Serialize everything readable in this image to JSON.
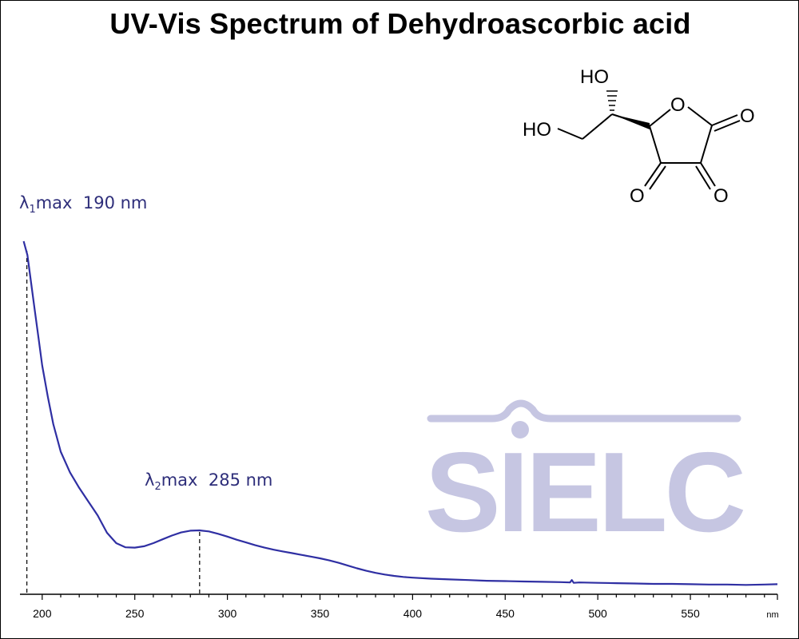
{
  "title": "UV-Vis Spectrum of Dehydroascorbic acid",
  "watermark": "SIELC",
  "colors": {
    "spectrum": "#2f2fa3",
    "label": "#2e2e7a",
    "watermark": "#c6c6e2"
  },
  "chart_data": {
    "type": "line",
    "title": "UV-Vis Spectrum of Dehydroascorbic acid",
    "xlabel": "nm",
    "ylabel": "",
    "xlim": [
      188,
      597
    ],
    "x_ticks": [
      200,
      250,
      300,
      350,
      400,
      450,
      500,
      550
    ],
    "grid": false,
    "peaks": [
      {
        "symbol": "λ",
        "index": "1",
        "text": "max",
        "value": "190 nm",
        "x": 190
      },
      {
        "symbol": "λ",
        "index": "2",
        "text": "max",
        "value": "285 nm",
        "x": 285
      }
    ],
    "series": [
      {
        "points": [
          [
            190,
            1.0
          ],
          [
            192,
            0.96
          ],
          [
            194,
            0.88
          ],
          [
            196,
            0.8
          ],
          [
            198,
            0.72
          ],
          [
            200,
            0.64
          ],
          [
            203,
            0.55
          ],
          [
            206,
            0.47
          ],
          [
            210,
            0.39
          ],
          [
            215,
            0.33
          ],
          [
            220,
            0.285
          ],
          [
            225,
            0.245
          ],
          [
            230,
            0.205
          ],
          [
            235,
            0.155
          ],
          [
            240,
            0.125
          ],
          [
            245,
            0.113
          ],
          [
            250,
            0.112
          ],
          [
            255,
            0.116
          ],
          [
            260,
            0.125
          ],
          [
            265,
            0.136
          ],
          [
            270,
            0.147
          ],
          [
            275,
            0.156
          ],
          [
            280,
            0.161
          ],
          [
            285,
            0.162
          ],
          [
            290,
            0.159
          ],
          [
            295,
            0.152
          ],
          [
            300,
            0.144
          ],
          [
            305,
            0.135
          ],
          [
            310,
            0.127
          ],
          [
            315,
            0.119
          ],
          [
            320,
            0.112
          ],
          [
            325,
            0.106
          ],
          [
            330,
            0.101
          ],
          [
            335,
            0.096
          ],
          [
            340,
            0.091
          ],
          [
            345,
            0.086
          ],
          [
            350,
            0.081
          ],
          [
            355,
            0.075
          ],
          [
            360,
            0.068
          ],
          [
            365,
            0.06
          ],
          [
            370,
            0.052
          ],
          [
            375,
            0.045
          ],
          [
            380,
            0.039
          ],
          [
            385,
            0.034
          ],
          [
            390,
            0.03
          ],
          [
            395,
            0.027
          ],
          [
            400,
            0.025
          ],
          [
            410,
            0.022
          ],
          [
            420,
            0.02
          ],
          [
            430,
            0.018
          ],
          [
            440,
            0.016
          ],
          [
            450,
            0.015
          ],
          [
            460,
            0.014
          ],
          [
            470,
            0.013
          ],
          [
            480,
            0.012
          ],
          [
            485,
            0.011
          ],
          [
            486,
            0.018
          ],
          [
            487,
            0.01
          ],
          [
            490,
            0.011
          ],
          [
            500,
            0.01
          ],
          [
            510,
            0.009
          ],
          [
            520,
            0.008
          ],
          [
            530,
            0.007
          ],
          [
            540,
            0.007
          ],
          [
            550,
            0.006
          ],
          [
            560,
            0.005
          ],
          [
            570,
            0.005
          ],
          [
            580,
            0.004
          ],
          [
            590,
            0.005
          ],
          [
            597,
            0.006
          ]
        ]
      }
    ]
  },
  "structure": {
    "atom_labels": [
      "HO",
      "HO",
      "O",
      "O",
      "O",
      "O"
    ]
  }
}
